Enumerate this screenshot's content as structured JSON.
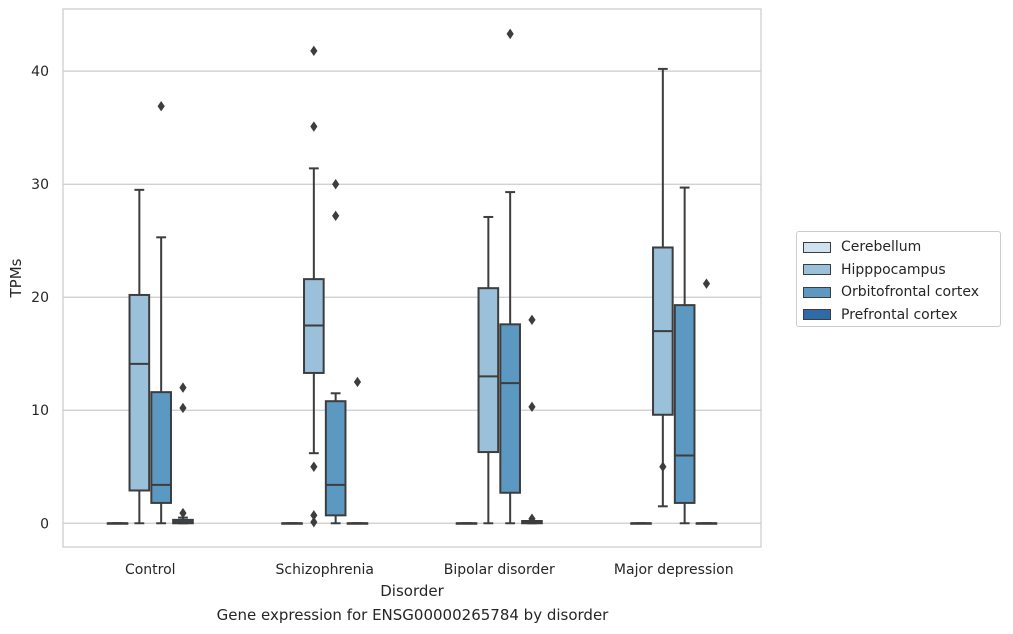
{
  "chart_data": {
    "type": "box",
    "caption": "Gene expression for ENSG00000265784 by disorder",
    "xlabel": "Disorder",
    "ylabel": "TPMs",
    "ylim": [
      -2.1,
      45.5
    ],
    "yticks": [
      0,
      10,
      20,
      30,
      40
    ],
    "grid": "horizontal",
    "legend_position": "right",
    "categories": [
      "Control",
      "Schizophrenia",
      "Bipolar disorder",
      "Major depression"
    ],
    "series": [
      {
        "name": "Cerebellum",
        "color": "#d0e1f2",
        "boxes": [
          {
            "q1": 0,
            "median": 0,
            "q3": 0,
            "whisker_low": 0,
            "whisker_high": 0,
            "outliers": []
          },
          {
            "q1": 0,
            "median": 0,
            "q3": 0,
            "whisker_low": 0,
            "whisker_high": 0,
            "outliers": []
          },
          {
            "q1": 0,
            "median": 0,
            "q3": 0,
            "whisker_low": 0,
            "whisker_high": 0,
            "outliers": []
          },
          {
            "q1": 0,
            "median": 0,
            "q3": 0,
            "whisker_low": 0,
            "whisker_high": 0,
            "outliers": []
          }
        ]
      },
      {
        "name": "Hipppocampus",
        "color": "#9ac0da",
        "boxes": [
          {
            "q1": 2.9,
            "median": 14.1,
            "q3": 20.2,
            "whisker_low": 0,
            "whisker_high": 29.5,
            "outliers": []
          },
          {
            "q1": 13.3,
            "median": 17.5,
            "q3": 21.6,
            "whisker_low": 6.2,
            "whisker_high": 31.4,
            "outliers": [
              35.1,
              41.8,
              5.0,
              0.7,
              0.1
            ]
          },
          {
            "q1": 6.3,
            "median": 13.0,
            "q3": 20.8,
            "whisker_low": 0,
            "whisker_high": 27.1,
            "outliers": []
          },
          {
            "q1": 9.6,
            "median": 17.0,
            "q3": 24.4,
            "whisker_low": 1.5,
            "whisker_high": 40.2,
            "outliers": [
              5.0
            ]
          }
        ]
      },
      {
        "name": "Orbitofrontal cortex",
        "color": "#5b99c3",
        "boxes": [
          {
            "q1": 1.8,
            "median": 3.4,
            "q3": 11.6,
            "whisker_low": 0,
            "whisker_high": 25.3,
            "outliers": [
              36.9
            ]
          },
          {
            "q1": 0.7,
            "median": 3.4,
            "q3": 10.8,
            "whisker_low": 0,
            "whisker_high": 11.5,
            "outliers": [
              30.0,
              27.2
            ]
          },
          {
            "q1": 2.7,
            "median": 12.4,
            "q3": 17.6,
            "whisker_low": 0,
            "whisker_high": 29.3,
            "outliers": [
              43.3
            ]
          },
          {
            "q1": 1.8,
            "median": 6.0,
            "q3": 19.3,
            "whisker_low": 0,
            "whisker_high": 29.7,
            "outliers": []
          }
        ]
      },
      {
        "name": "Prefrontal cortex",
        "color": "#2e6ba8",
        "boxes": [
          {
            "q1": 0,
            "median": 0.1,
            "q3": 0.3,
            "whisker_low": 0,
            "whisker_high": 0.5,
            "outliers": [
              12.0,
              10.2,
              0.9
            ]
          },
          {
            "q1": 0,
            "median": 0,
            "q3": 0,
            "whisker_low": 0,
            "whisker_high": 0,
            "outliers": [
              12.5
            ]
          },
          {
            "q1": 0,
            "median": 0.1,
            "q3": 0.2,
            "whisker_low": 0,
            "whisker_high": 0.2,
            "outliers": [
              18.0,
              10.3,
              0.4
            ]
          },
          {
            "q1": 0,
            "median": 0,
            "q3": 0,
            "whisker_low": 0,
            "whisker_high": 0,
            "outliers": [
              21.2
            ]
          }
        ]
      }
    ]
  }
}
